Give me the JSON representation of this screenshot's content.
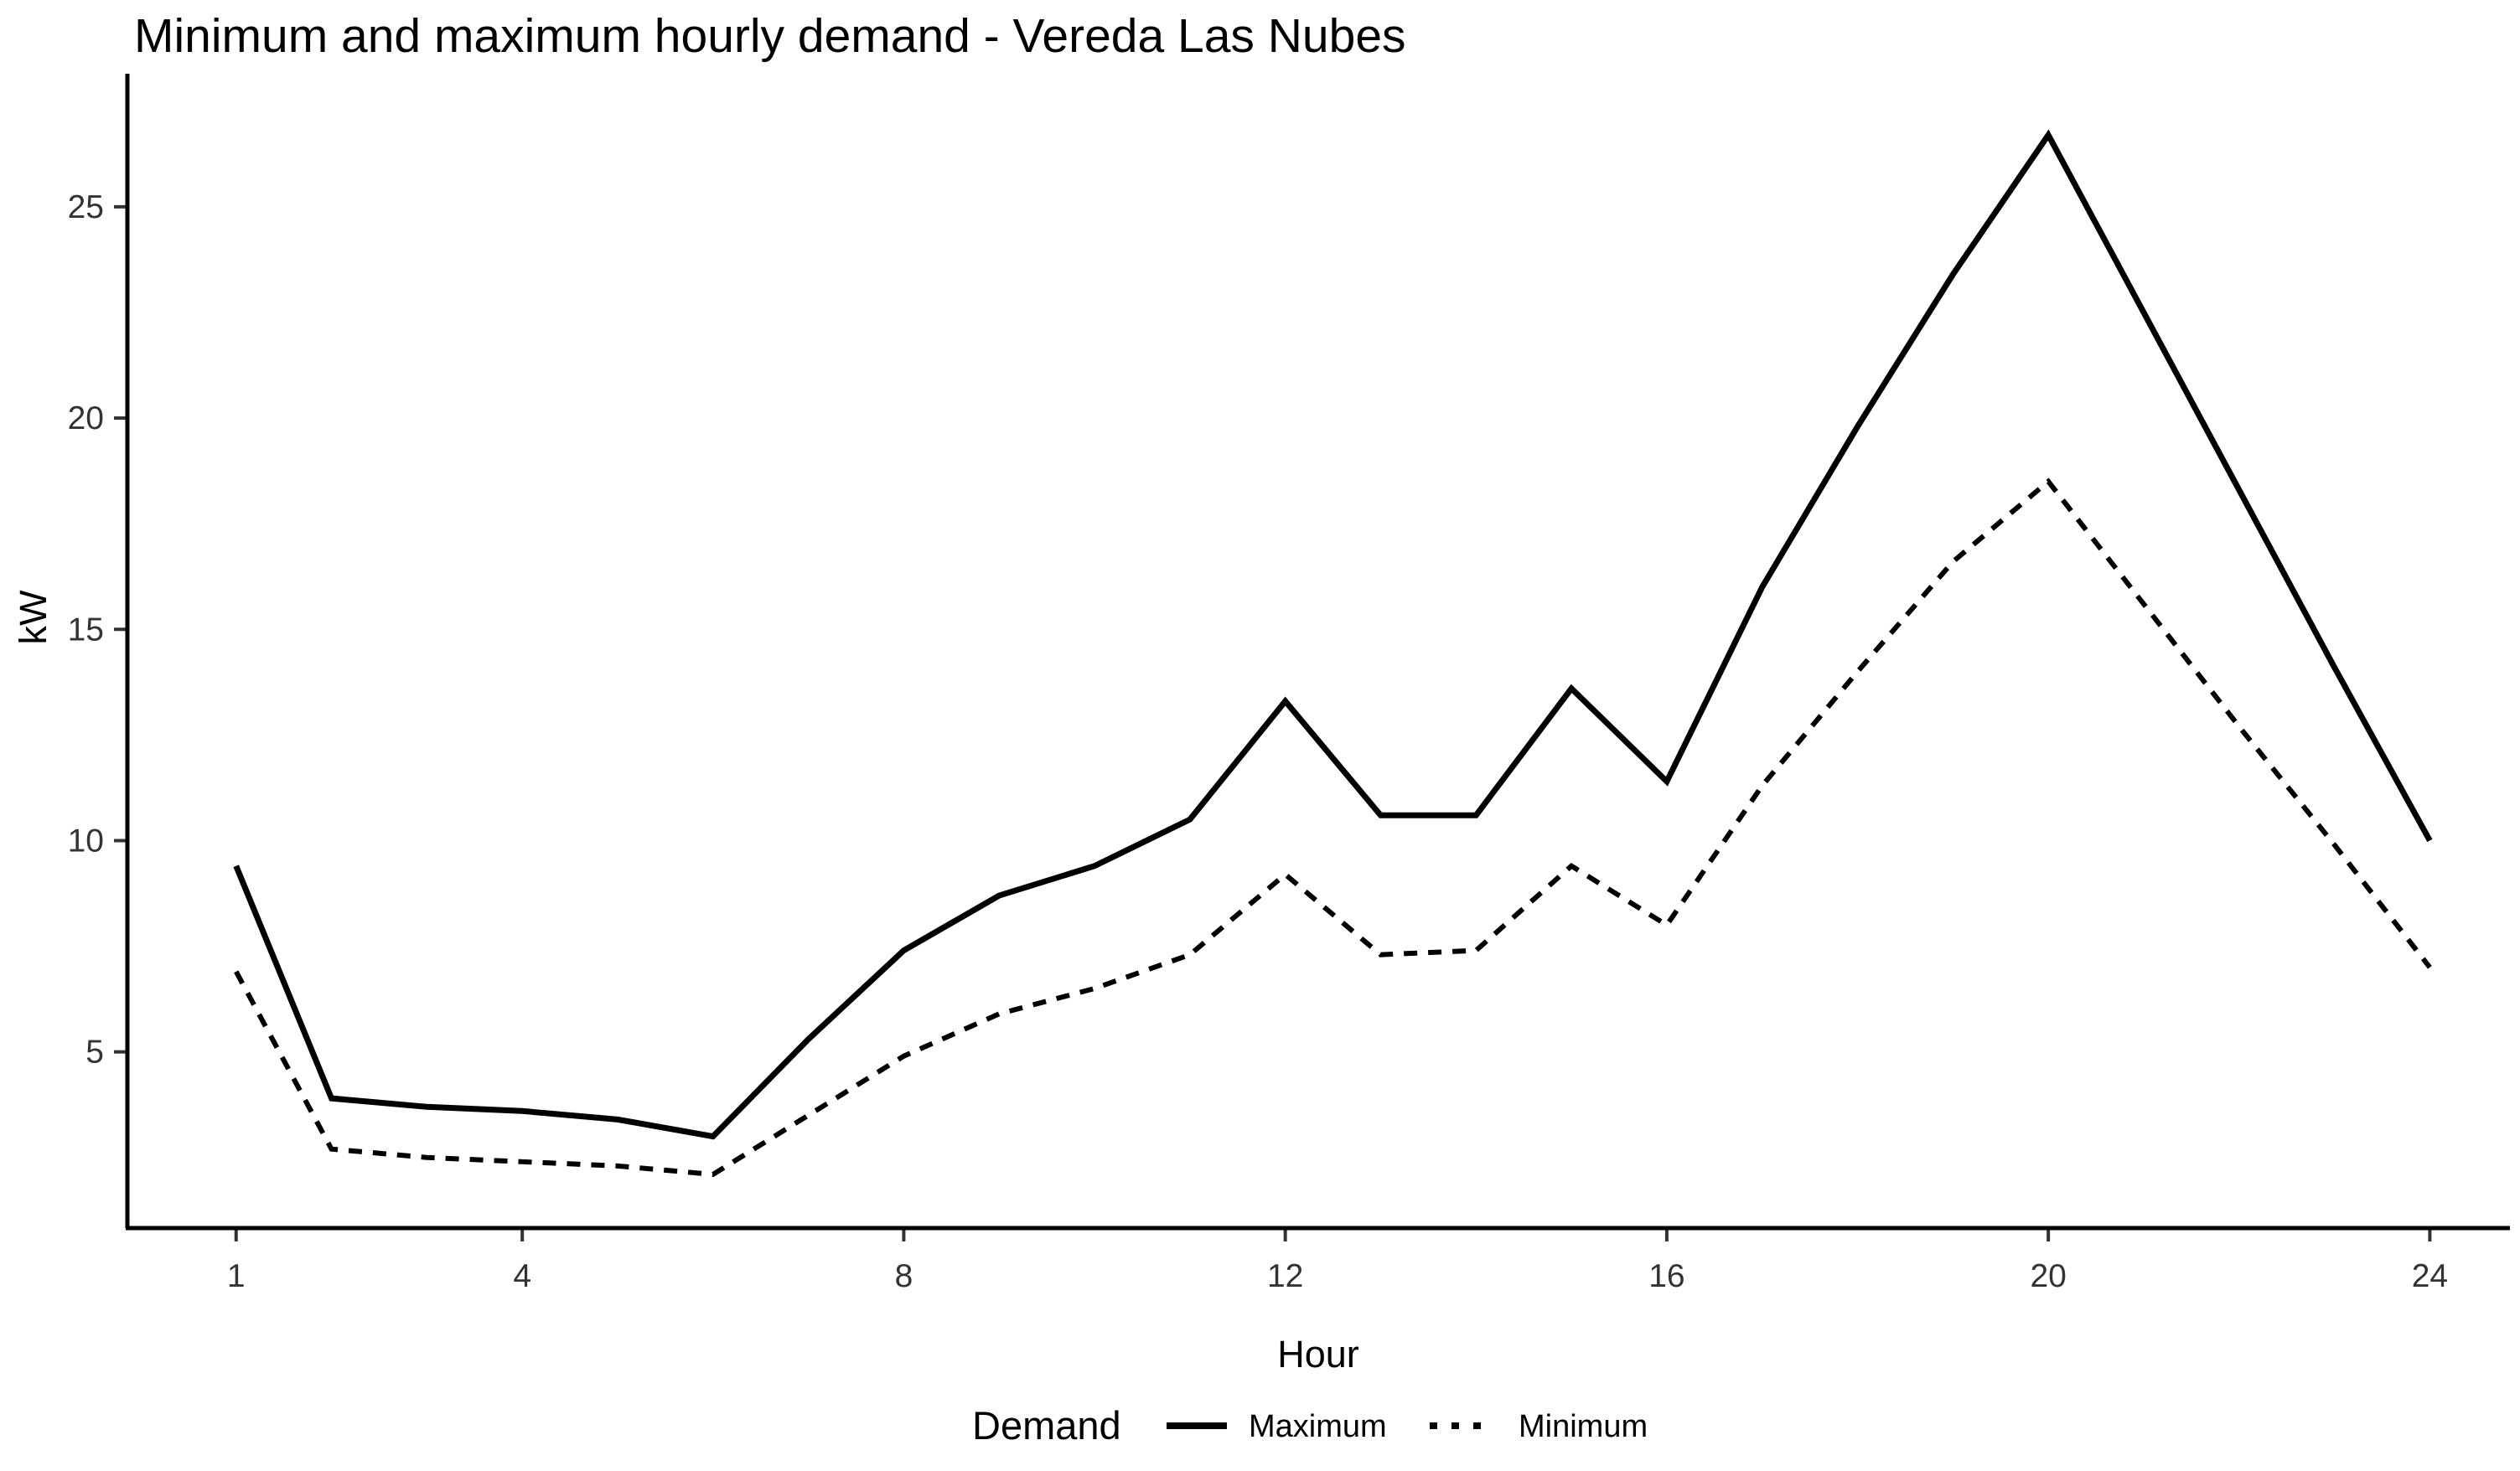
{
  "title": "Minimum and maximum hourly demand - Vereda Las Nubes",
  "axes": {
    "x_label": "Hour",
    "y_label": "kW"
  },
  "legend": {
    "title": "Demand",
    "items": [
      {
        "label": "Maximum",
        "style": "solid"
      },
      {
        "label": "Minimum",
        "style": "dashed"
      }
    ]
  },
  "colors": {
    "line": "#000000",
    "axis": "#000000",
    "tick_text": "#333333",
    "background": "#ffffff"
  },
  "chart_data": {
    "type": "line",
    "title": "Minimum and maximum hourly demand - Vereda Las Nubes",
    "xlabel": "Hour",
    "ylabel": "kW",
    "x": [
      1,
      2,
      3,
      4,
      5,
      6,
      7,
      8,
      9,
      10,
      11,
      12,
      13,
      14,
      15,
      16,
      17,
      18,
      19,
      20,
      21,
      22,
      23,
      24
    ],
    "series": [
      {
        "name": "Maximum",
        "style": "solid",
        "values": [
          9.4,
          3.9,
          3.7,
          3.6,
          3.4,
          3.0,
          5.3,
          7.4,
          8.7,
          9.4,
          10.5,
          13.3,
          10.6,
          10.6,
          13.6,
          11.4,
          16.0,
          19.8,
          23.4,
          26.7,
          22.5,
          18.3,
          14.1,
          10.0
        ]
      },
      {
        "name": "Minimum",
        "style": "dashed",
        "values": [
          6.9,
          2.7,
          2.5,
          2.4,
          2.3,
          2.1,
          3.5,
          4.9,
          5.9,
          6.5,
          7.3,
          9.2,
          7.3,
          7.4,
          9.4,
          8.0,
          11.3,
          14.0,
          16.6,
          18.5,
          15.6,
          12.7,
          9.9,
          7.0
        ]
      }
    ],
    "x_ticks": [
      1,
      4,
      8,
      12,
      16,
      20,
      24
    ],
    "y_ticks": [
      5,
      10,
      15,
      20,
      25
    ],
    "xlim": [
      -0.14,
      24.84
    ],
    "ylim": [
      0.83,
      28.15
    ],
    "grid": false,
    "legend_position": "bottom"
  }
}
